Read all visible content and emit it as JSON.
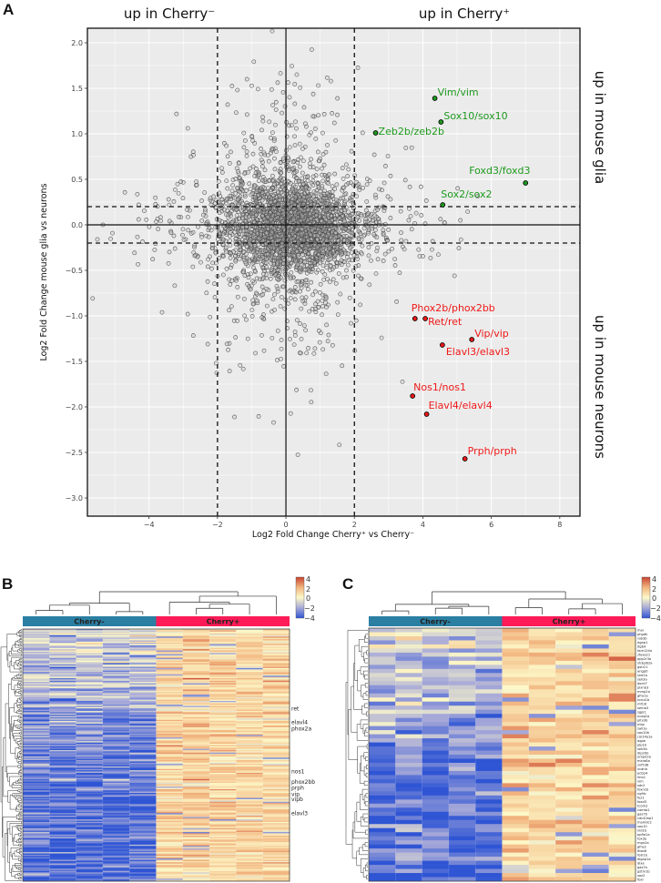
{
  "panel_labels": {
    "a": "A",
    "b": "B",
    "c": "C"
  },
  "chart_data": [
    {
      "type": "scatter",
      "title_left": "up in Cherry⁻",
      "title_right": "up in Cherry⁺",
      "side_top": "up in mouse glia",
      "side_bottom": "up in mouse neurons",
      "xlabel": "Log2 Fold Change Cherry⁺ vs Cherry⁻",
      "ylabel": "Log2 Fold Change mouse glia vs neurons",
      "xlim": [
        -5.8,
        8.59
      ],
      "ylim": [
        -3.2,
        2.16
      ],
      "xticks": [
        -4,
        -2,
        0,
        2,
        4,
        6,
        8
      ],
      "yticks": [
        2.0,
        1.5,
        1.0,
        0.5,
        0.0,
        -0.5,
        -1.0,
        -1.5,
        -2.0,
        -2.5,
        -3.0
      ],
      "grid": true,
      "thresholds": {
        "x": [
          -2,
          2
        ],
        "y": [
          -0.2,
          0.2
        ]
      },
      "background_points": {
        "count": 3200,
        "seed": 7,
        "note_generated": true
      },
      "highlighted": [
        {
          "label": "Vim/vim",
          "x": 4.35,
          "y": 1.39,
          "group": "glia",
          "color": "#1e9a1e"
        },
        {
          "label": "Sox10/sox10",
          "x": 4.53,
          "y": 1.13,
          "group": "glia",
          "color": "#1e9a1e"
        },
        {
          "label": "Zeb2b/zeb2b",
          "x": 2.62,
          "y": 1.01,
          "group": "glia",
          "color": "#1e9a1e"
        },
        {
          "label": "Foxd3/foxd3",
          "x": 7.0,
          "y": 0.46,
          "group": "glia",
          "color": "#1e9a1e"
        },
        {
          "label": "Sox2/sox2",
          "x": 4.58,
          "y": 0.22,
          "group": "glia",
          "color": "#1e9a1e"
        },
        {
          "label": "Phox2b/phox2bb",
          "x": 3.77,
          "y": -1.03,
          "group": "neuron",
          "color": "#f01818"
        },
        {
          "label": "Ret/ret",
          "x": 4.07,
          "y": -1.03,
          "group": "neuron",
          "color": "#f01818"
        },
        {
          "label": "Vip/vip",
          "x": 5.43,
          "y": -1.26,
          "group": "neuron",
          "color": "#f01818"
        },
        {
          "label": "Elavl3/elavl3",
          "x": 4.57,
          "y": -1.32,
          "group": "neuron",
          "color": "#f01818"
        },
        {
          "label": "Nos1/nos1",
          "x": 3.7,
          "y": -1.88,
          "group": "neuron",
          "color": "#f01818"
        },
        {
          "label": "Elavl4/elavl4",
          "x": 4.11,
          "y": -2.08,
          "group": "neuron",
          "color": "#f01818"
        },
        {
          "label": "Prph/prph",
          "x": 5.23,
          "y": -2.57,
          "group": "neuron",
          "color": "#f01818"
        }
      ]
    },
    {
      "type": "heatmap",
      "groups": [
        {
          "label": "Cherry-",
          "columns": 5,
          "color": "#2b7fa3"
        },
        {
          "label": "Cherry+",
          "columns": 5,
          "color": "#ff1b57"
        }
      ],
      "rows": 200,
      "seed": 11,
      "colorbar": {
        "ticks": [
          "4",
          "2",
          "0",
          "−2",
          "−4"
        ],
        "range": [
          -4,
          4
        ]
      },
      "row_labels": [
        {
          "gene": "ret",
          "row": 63
        },
        {
          "gene": "elavl4",
          "row": 74
        },
        {
          "gene": "phox2a",
          "row": 79
        },
        {
          "gene": "nos1",
          "row": 113
        },
        {
          "gene": "phox2bb",
          "row": 121
        },
        {
          "gene": "prph",
          "row": 126
        },
        {
          "gene": "vip",
          "row": 131
        },
        {
          "gene": "vipb",
          "row": 135
        },
        {
          "gene": "elavl3",
          "row": 146
        }
      ]
    },
    {
      "type": "heatmap",
      "groups": [
        {
          "label": "Cherry-",
          "columns": 5,
          "color": "#2b7fa3"
        },
        {
          "label": "Cherry+",
          "columns": 5,
          "color": "#ff1b57"
        }
      ],
      "seed": 23,
      "colorbar": {
        "ticks": [
          "4",
          "2",
          "0",
          "−2",
          "−4"
        ],
        "range": [
          -4,
          4
        ]
      },
      "genes": [
        "mal",
        "phgdh",
        "rab3b",
        "egap1",
        "itgb4",
        "fam124a",
        "zfyve21",
        "ppp2r3a",
        "sh3glb2a",
        "gstr21",
        "angptl",
        "snd1a",
        "sek3a",
        "dock7",
        "plxnb3",
        "mmp2a",
        "gfra1a",
        "kcna1b",
        "mf13l",
        "sema3",
        "sgpl1",
        "ncag1a",
        "pitx3b",
        "mlip",
        "sall1a",
        "sox10b",
        "col14a1a",
        "agpe",
        "plp1b",
        "sek3b",
        "dip2bb",
        "entpd2a",
        "mxra8a",
        "znf536",
        "vcanb",
        "pcbp4",
        "lmo1",
        "vim",
        "sdc2",
        "foxn1b",
        "ngfrb",
        "fez1",
        "foxd3",
        "tcom2",
        "camta1",
        "gas7b",
        "cdc42ep1",
        "mamdc2",
        "sox10",
        "nid1b",
        "ppfia1a",
        "tox3a",
        "mgn2a",
        "gfra3",
        "fbxo6",
        "fosl1b",
        "dlgap1a",
        "dlxa",
        "gas7a",
        "gstm1b",
        "sox2",
        "foxl"
      ]
    }
  ]
}
